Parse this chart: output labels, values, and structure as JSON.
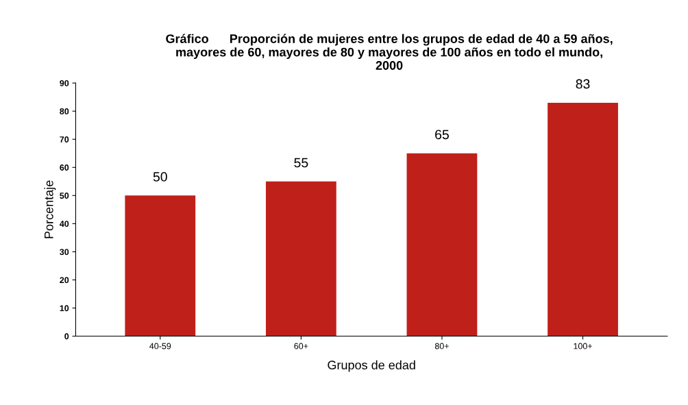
{
  "chart_data": {
    "type": "bar",
    "title": "Gráfico      Proporción de mujeres entre los grupos de edad de 40 a 59 años,\nmayores de 60, mayores de 80 y mayores de 100 años en todo el mundo,\n2000",
    "xlabel": "Grupos de edad",
    "ylabel": "Porcentaje",
    "categories": [
      "40-59",
      "60+",
      "80+",
      "100+"
    ],
    "values": [
      50,
      55,
      65,
      83
    ],
    "color": "#c0201a",
    "ylim": [
      0,
      90
    ],
    "yticks": [
      0,
      10,
      20,
      30,
      40,
      50,
      60,
      70,
      80,
      90
    ],
    "data_labels": true,
    "grid": false,
    "legend": false
  }
}
